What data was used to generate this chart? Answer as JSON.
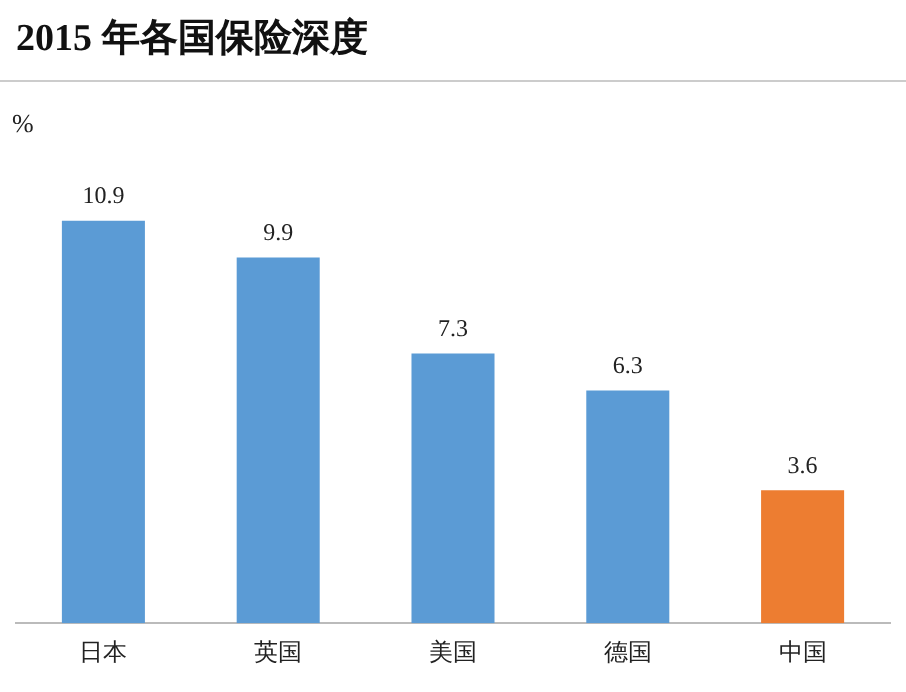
{
  "chart_data": {
    "type": "bar",
    "title": "2015 年各国保险深度",
    "ylabel": "%",
    "categories": [
      "日本",
      "英国",
      "美国",
      "德国",
      "中国"
    ],
    "values": [
      10.9,
      9.9,
      7.3,
      6.3,
      3.6
    ],
    "colors": [
      "#5b9bd5",
      "#5b9bd5",
      "#5b9bd5",
      "#5b9bd5",
      "#ed7d31"
    ],
    "data_labels": true,
    "grid": false,
    "legend": false
  }
}
